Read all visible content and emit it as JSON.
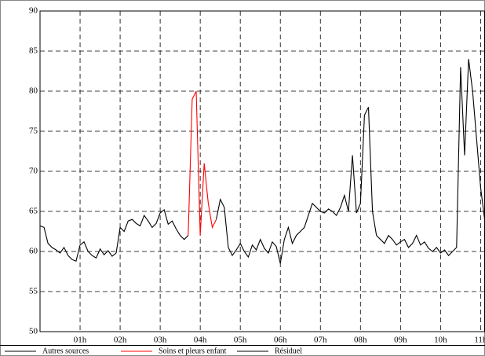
{
  "chart_data": {
    "type": "line",
    "x": [
      0,
      0.1,
      0.2,
      0.3,
      0.4,
      0.5,
      0.6,
      0.7,
      0.8,
      0.9,
      1,
      1.1,
      1.2,
      1.3,
      1.4,
      1.5,
      1.6,
      1.7,
      1.8,
      1.9,
      2,
      2.1,
      2.2,
      2.3,
      2.4,
      2.5,
      2.6,
      2.7,
      2.8,
      2.9,
      3,
      3.1,
      3.2,
      3.3,
      3.4,
      3.5,
      3.6,
      3.7,
      3.8,
      3.9,
      4,
      4.1,
      4.2,
      4.3,
      4.4,
      4.5,
      4.6,
      4.7,
      4.8,
      4.9,
      5,
      5.1,
      5.2,
      5.3,
      5.4,
      5.5,
      5.6,
      5.7,
      5.8,
      5.9,
      6,
      6.1,
      6.2,
      6.3,
      6.4,
      6.5,
      6.6,
      6.7,
      6.8,
      6.9,
      7,
      7.1,
      7.2,
      7.3,
      7.4,
      7.5,
      7.6,
      7.7,
      7.8,
      7.9,
      8,
      8.1,
      8.2,
      8.3,
      8.4,
      8.5,
      8.6,
      8.7,
      8.8,
      8.9,
      9,
      9.1,
      9.2,
      9.3,
      9.4,
      9.5,
      9.6,
      9.7,
      9.8,
      9.9,
      10,
      10.1,
      10.2,
      10.3,
      10.4,
      10.5,
      10.6,
      10.7,
      10.8,
      10.9,
      11,
      11.1
    ],
    "series": [
      {
        "name": "Autres sources",
        "color": "#000000",
        "values": [
          null,
          null,
          null,
          null,
          null,
          null,
          null,
          null,
          null,
          null,
          null,
          null,
          null,
          null,
          null,
          null,
          null,
          null,
          null,
          null,
          null,
          null,
          null,
          null,
          null,
          null,
          null,
          null,
          null,
          null,
          null,
          null,
          null,
          null,
          null,
          null,
          null,
          null,
          null,
          null,
          null,
          null,
          null,
          null,
          null,
          null,
          null,
          null,
          null,
          null,
          null,
          null,
          null,
          null,
          null,
          null,
          null,
          null,
          null,
          null,
          null,
          null,
          null,
          null,
          null,
          null,
          null,
          null,
          null,
          null,
          null,
          null,
          null,
          null,
          null,
          null,
          null,
          null,
          null,
          null,
          66,
          77,
          78,
          65,
          62,
          null,
          null,
          null,
          null,
          null,
          null,
          null,
          null,
          null,
          null,
          null,
          null,
          null,
          null,
          null,
          null,
          null,
          null,
          null,
          60.5,
          83,
          72,
          84,
          80,
          74,
          68,
          64
        ]
      },
      {
        "name": "Soins et pleurs enfant",
        "color": "#ff0000",
        "values": [
          null,
          null,
          null,
          null,
          null,
          null,
          null,
          null,
          null,
          null,
          null,
          null,
          null,
          null,
          null,
          null,
          null,
          null,
          null,
          null,
          null,
          null,
          null,
          null,
          null,
          null,
          null,
          null,
          null,
          null,
          null,
          null,
          null,
          null,
          null,
          null,
          null,
          62,
          79,
          80,
          62,
          71,
          66,
          63,
          64,
          null,
          null,
          null,
          null,
          null,
          null,
          null,
          null,
          null,
          null,
          null,
          null,
          null,
          null,
          null,
          null,
          null,
          null,
          null,
          null,
          null,
          null,
          null,
          null,
          null,
          null,
          null,
          null,
          null,
          null,
          null,
          null,
          null,
          null,
          null,
          null,
          null,
          null,
          null,
          null,
          null,
          null,
          null,
          null,
          null,
          null,
          null,
          null,
          null,
          null,
          null,
          null,
          null,
          null,
          null,
          null,
          null,
          null,
          null,
          null,
          null,
          null,
          null,
          null,
          null,
          null,
          null
        ]
      },
      {
        "name": "Résiduel",
        "color": "#000000",
        "values": [
          63.2,
          63.0,
          61.0,
          60.5,
          60.2,
          59.8,
          60.5,
          59.5,
          59.0,
          58.8,
          60.8,
          61.2,
          60.0,
          59.5,
          59.2,
          60.3,
          59.6,
          60.1,
          59.4,
          59.8,
          63.0,
          62.5,
          63.8,
          64.0,
          63.5,
          63.2,
          64.5,
          63.8,
          63.0,
          63.5,
          64.8,
          65.2,
          63.4,
          63.8,
          62.8,
          62.0,
          61.5,
          62.0,
          null,
          null,
          null,
          null,
          null,
          null,
          64,
          66.5,
          65.5,
          60.5,
          59.5,
          60.2,
          61.0,
          60.0,
          59.3,
          60.8,
          60.2,
          61.5,
          60.4,
          59.8,
          61.2,
          60.6,
          58.5,
          61.5,
          63.0,
          61.0,
          62.0,
          62.5,
          63.0,
          64.5,
          66.0,
          65.5,
          65.0,
          64.8,
          65.3,
          65.0,
          64.5,
          65.5,
          67.0,
          65.0,
          72.0,
          64.8,
          66,
          null,
          null,
          null,
          62,
          61.5,
          61.0,
          62.0,
          61.5,
          60.8,
          61.2,
          61.5,
          60.5,
          61.0,
          62.0,
          60.8,
          61.2,
          60.4,
          60.0,
          60.5,
          59.8,
          60.2,
          59.5,
          60.0,
          60.5,
          null,
          null,
          null,
          null,
          null,
          null,
          null
        ]
      }
    ],
    "xlim": [
      0,
      11.1
    ],
    "xticks": [
      {
        "value": 1,
        "label": "01h"
      },
      {
        "value": 2,
        "label": "02h"
      },
      {
        "value": 3,
        "label": "03h"
      },
      {
        "value": 4,
        "label": "04h"
      },
      {
        "value": 5,
        "label": "05h"
      },
      {
        "value": 6,
        "label": "06h"
      },
      {
        "value": 7,
        "label": "07h"
      },
      {
        "value": 8,
        "label": "08h"
      },
      {
        "value": 9,
        "label": "09h"
      },
      {
        "value": 10,
        "label": "10h"
      },
      {
        "value": 11,
        "label": "11h"
      }
    ],
    "ylim": [
      50,
      90
    ],
    "yticks": [
      50,
      55,
      60,
      65,
      70,
      75,
      80,
      85,
      90
    ],
    "grid": true,
    "legend": "bottom"
  }
}
